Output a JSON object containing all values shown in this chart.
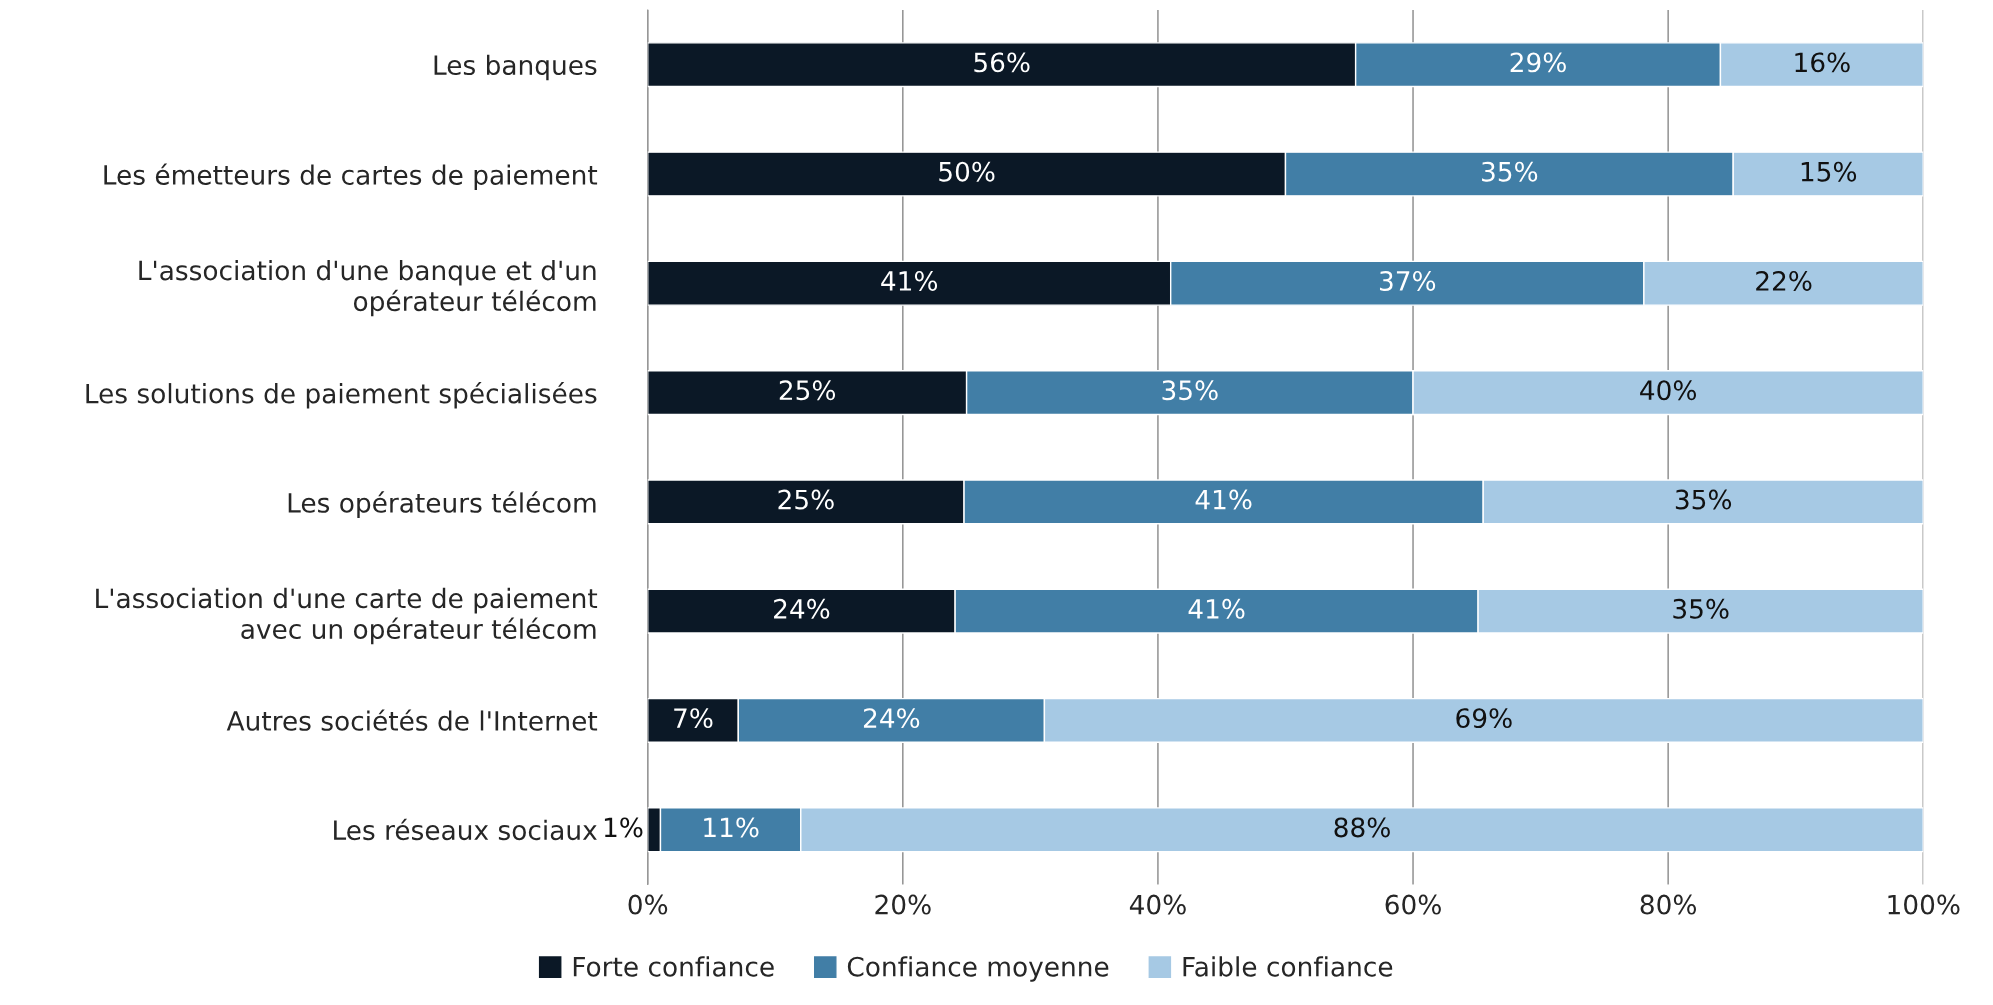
{
  "chart_data": {
    "type": "bar",
    "orientation": "horizontal",
    "stacked": true,
    "categories": [
      "Les banques",
      "Les émetteurs de cartes de paiement",
      "L'association d'une banque et d'un\nopérateur télécom",
      "Les solutions de paiement spécialisées",
      "Les opérateurs télécom",
      "L'association d'une carte de paiement\navec un opérateur télécom",
      "Autres sociétés de l'Internet",
      "Les réseaux sociaux"
    ],
    "series": [
      {
        "name": "Forte confiance",
        "color": "#0b1826",
        "values": [
          55.5,
          50.0,
          41.0,
          25.0,
          24.8,
          24.1,
          7.1,
          1.0
        ],
        "value_labels": [
          "56%",
          "50%",
          "41%",
          "25%",
          "25%",
          "24%",
          "7%",
          "1%"
        ]
      },
      {
        "name": "Confiance moyenne",
        "color": "#417ea6",
        "values": [
          28.6,
          35.1,
          37.1,
          35.0,
          40.7,
          41.0,
          24.0,
          11.0
        ],
        "value_labels": [
          "29%",
          "35%",
          "37%",
          "35%",
          "41%",
          "41%",
          "24%",
          "11%"
        ]
      },
      {
        "name": "Faible confiance",
        "color": "#a6c9e4",
        "values": [
          15.9,
          14.9,
          21.9,
          40.0,
          34.5,
          34.9,
          68.9,
          88.0
        ],
        "value_labels": [
          "16%",
          "15%",
          "22%",
          "40%",
          "35%",
          "35%",
          "69%",
          "88%"
        ]
      }
    ],
    "xlim": [
      0,
      100
    ],
    "xticks": [
      {
        "value": 0,
        "label": "0%"
      },
      {
        "value": 20,
        "label": "20%"
      },
      {
        "value": 40,
        "label": "40%"
      },
      {
        "value": 60,
        "label": "60%"
      },
      {
        "value": 80,
        "label": "80%"
      },
      {
        "value": 100,
        "label": "100%"
      }
    ],
    "grid": "x",
    "legend": "bottom"
  }
}
